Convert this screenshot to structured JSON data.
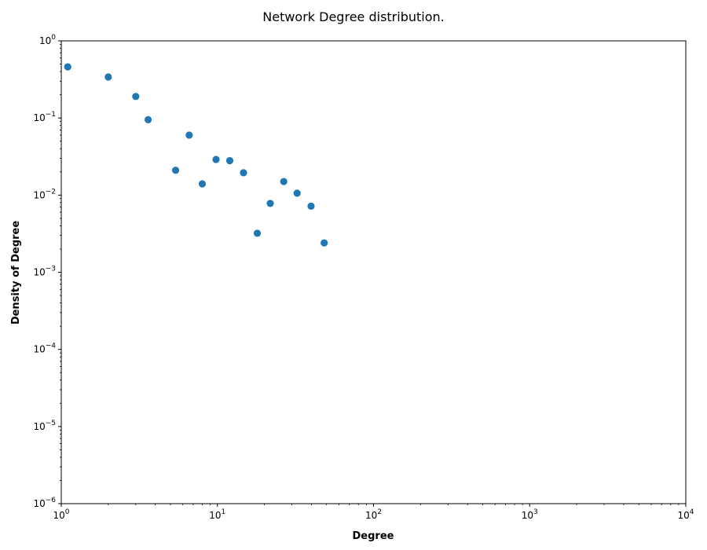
{
  "chart_data": {
    "type": "scatter",
    "title": "Network Degree distribution.",
    "xlabel": "Degree",
    "ylabel": "Density of Degree",
    "xscale": "log",
    "yscale": "log",
    "xlim": [
      1,
      10000
    ],
    "ylim": [
      1e-06,
      1
    ],
    "grid": false,
    "x_ticks": [
      {
        "value": 1,
        "base": "10",
        "exp": "0"
      },
      {
        "value": 10,
        "base": "10",
        "exp": "1"
      },
      {
        "value": 100,
        "base": "10",
        "exp": "2"
      },
      {
        "value": 1000,
        "base": "10",
        "exp": "3"
      },
      {
        "value": 10000,
        "base": "10",
        "exp": "4"
      }
    ],
    "y_ticks": [
      {
        "value": 1,
        "base": "10",
        "exp": "0"
      },
      {
        "value": 0.1,
        "base": "10",
        "exp": "−1"
      },
      {
        "value": 0.01,
        "base": "10",
        "exp": "−2"
      },
      {
        "value": 0.001,
        "base": "10",
        "exp": "−3"
      },
      {
        "value": 0.0001,
        "base": "10",
        "exp": "−4"
      },
      {
        "value": 1e-05,
        "base": "10",
        "exp": "−5"
      },
      {
        "value": 1e-06,
        "base": "10",
        "exp": "−6"
      }
    ],
    "series": [
      {
        "color": "#1f77b4",
        "points": [
          {
            "x": 1.1,
            "y": 0.46
          },
          {
            "x": 2.0,
            "y": 0.34
          },
          {
            "x": 3.0,
            "y": 0.19
          },
          {
            "x": 3.6,
            "y": 0.095
          },
          {
            "x": 5.4,
            "y": 0.021
          },
          {
            "x": 6.6,
            "y": 0.06
          },
          {
            "x": 8.0,
            "y": 0.014
          },
          {
            "x": 9.8,
            "y": 0.029
          },
          {
            "x": 12.0,
            "y": 0.028
          },
          {
            "x": 14.7,
            "y": 0.0195
          },
          {
            "x": 18.0,
            "y": 0.0032
          },
          {
            "x": 21.8,
            "y": 0.0078
          },
          {
            "x": 26.6,
            "y": 0.015
          },
          {
            "x": 32.4,
            "y": 0.0106
          },
          {
            "x": 39.8,
            "y": 0.0072
          },
          {
            "x": 48.3,
            "y": 0.0024
          }
        ]
      }
    ]
  }
}
